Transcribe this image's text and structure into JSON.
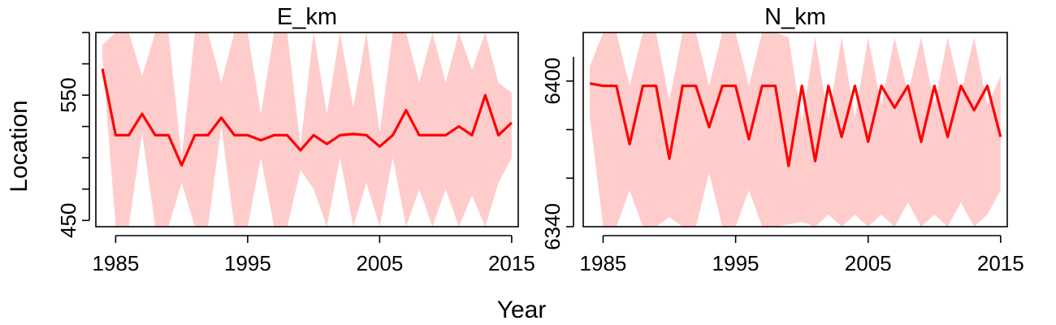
{
  "figure": {
    "xlabel": "Year",
    "ylabel": "Location"
  },
  "colors": {
    "line": "#ff0000",
    "band": "#ffcccc",
    "axis": "#000000"
  },
  "chart_data": [
    {
      "type": "line",
      "title": "E_km",
      "xlim": [
        1983.5,
        2015.5
      ],
      "ylim": [
        445,
        600
      ],
      "xticks": [
        "1985",
        "1995",
        "2005",
        "2015"
      ],
      "yticks": [
        "450",
        "550"
      ],
      "x": [
        1984,
        1985,
        1986,
        1987,
        1988,
        1989,
        1990,
        1991,
        1992,
        1993,
        1994,
        1995,
        1996,
        1997,
        1998,
        1999,
        2000,
        2001,
        2002,
        2003,
        2004,
        2005,
        2006,
        2007,
        2008,
        2009,
        2010,
        2011,
        2012,
        2013,
        2014,
        2015
      ],
      "series": [
        {
          "values": [
            571,
            518,
            518,
            535,
            518,
            518,
            494,
            518,
            518,
            532,
            518,
            518,
            514,
            518,
            518,
            506,
            518,
            511,
            518,
            519,
            518,
            509,
            518,
            538,
            518,
            518,
            518,
            525,
            518,
            550,
            518,
            528
          ],
          "lower": [
            580,
            445,
            445,
            520,
            445,
            445,
            480,
            445,
            445,
            525,
            445,
            445,
            500,
            445,
            445,
            490,
            475,
            445,
            500,
            445,
            480,
            445,
            500,
            445,
            475,
            445,
            475,
            445,
            470,
            445,
            480,
            500
          ],
          "upper": [
            590,
            600,
            600,
            565,
            600,
            600,
            500,
            600,
            600,
            560,
            600,
            600,
            535,
            600,
            600,
            510,
            600,
            535,
            600,
            540,
            600,
            520,
            600,
            600,
            560,
            600,
            560,
            600,
            570,
            600,
            560,
            552
          ]
        }
      ]
    },
    {
      "type": "line",
      "title": "N_km",
      "xlim": [
        1983.5,
        2015.5
      ],
      "ylim": [
        6340,
        6420
      ],
      "xticks": [
        "1985",
        "1995",
        "2005",
        "2015"
      ],
      "yticks": [
        "6340",
        "6400"
      ],
      "x": [
        1984,
        1985,
        1986,
        1987,
        1988,
        1989,
        1990,
        1991,
        1992,
        1993,
        1994,
        1995,
        1996,
        1997,
        1998,
        1999,
        2000,
        2001,
        2002,
        2003,
        2004,
        2005,
        2006,
        2007,
        2008,
        2009,
        2010,
        2011,
        2012,
        2013,
        2014,
        2015
      ],
      "series": [
        {
          "values": [
            6399,
            6398,
            6398,
            6374,
            6398,
            6398,
            6368,
            6398,
            6398,
            6381,
            6398,
            6398,
            6376,
            6398,
            6398,
            6365,
            6398,
            6367,
            6398,
            6377,
            6398,
            6375,
            6398,
            6389,
            6398,
            6375,
            6398,
            6377,
            6398,
            6388,
            6398,
            6377
          ],
          "lower": [
            6385,
            6340,
            6340,
            6355,
            6340,
            6340,
            6344,
            6340,
            6340,
            6362,
            6340,
            6340,
            6355,
            6340,
            6340,
            6341,
            6342,
            6340,
            6345,
            6340,
            6345,
            6340,
            6345,
            6340,
            6350,
            6340,
            6345,
            6340,
            6350,
            6340,
            6345,
            6355
          ],
          "upper": [
            6406,
            6427,
            6427,
            6398,
            6427,
            6427,
            6392,
            6427,
            6427,
            6398,
            6427,
            6427,
            6398,
            6427,
            6427,
            6418,
            6383,
            6418,
            6384,
            6418,
            6385,
            6418,
            6390,
            6418,
            6395,
            6418,
            6390,
            6418,
            6395,
            6418,
            6390,
            6402
          ]
        }
      ]
    }
  ]
}
